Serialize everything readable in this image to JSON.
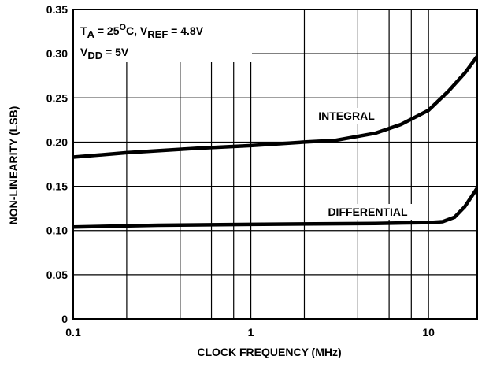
{
  "chart_data": {
    "type": "line",
    "x_label": "CLOCK FREQUENCY (MHz)",
    "y_label": "NON-LINEARITY (LSB)",
    "xscale": "log",
    "xlim": [
      0.1,
      18.8
    ],
    "ylim": [
      0,
      0.35
    ],
    "xticks": [
      0.1,
      1,
      10
    ],
    "xminor_grid": [
      0.2,
      0.4,
      0.6,
      0.8,
      2,
      4,
      6,
      8
    ],
    "yticks": [
      0,
      0.05,
      {
        "value": 0.1,
        "label": "0.10"
      },
      0.15,
      {
        "value": 0.2,
        "label": "0.20"
      },
      0.25,
      {
        "value": 0.3,
        "label": "0.30"
      },
      0.35
    ],
    "grid": true,
    "annotation": [
      [
        {
          "text": "T"
        },
        {
          "text": "A",
          "shift": "sub"
        },
        {
          "text": " = 25"
        },
        {
          "text": "O",
          "shift": "sup"
        },
        {
          "text": "C, V"
        },
        {
          "text": "REF",
          "shift": "sub"
        },
        {
          "text": " = 4.8V"
        }
      ],
      [
        {
          "text": "V"
        },
        {
          "text": "DD",
          "shift": "sub"
        },
        {
          "text": " = 5V"
        }
      ]
    ],
    "series": [
      {
        "name": "INTEGRAL",
        "color": "#000000",
        "x": [
          0.1,
          0.2,
          0.5,
          1,
          2,
          3,
          5,
          7,
          10,
          13,
          16,
          18.8
        ],
        "values": [
          0.183,
          0.188,
          0.193,
          0.196,
          0.2,
          0.202,
          0.21,
          0.22,
          0.236,
          0.258,
          0.278,
          0.297
        ]
      },
      {
        "name": "DIFFERENTIAL",
        "color": "#000000",
        "x": [
          0.1,
          0.3,
          1,
          5,
          10,
          12,
          14,
          16,
          18.8
        ],
        "values": [
          0.104,
          0.106,
          0.107,
          0.108,
          0.109,
          0.11,
          0.115,
          0.127,
          0.148
        ]
      }
    ]
  }
}
